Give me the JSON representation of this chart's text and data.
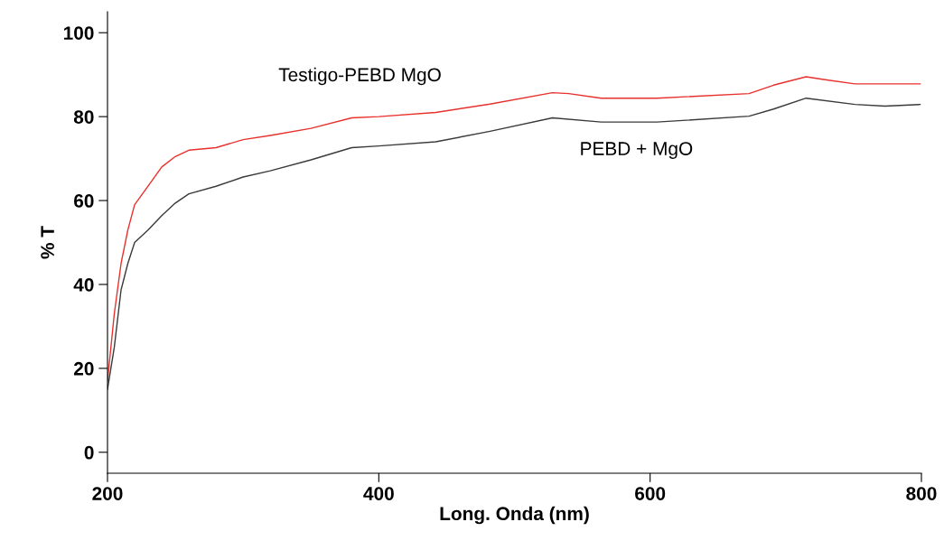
{
  "chart_data": {
    "type": "line",
    "xlabel": "Long. Onda (nm)",
    "ylabel": "% T",
    "xlim": [
      200,
      800
    ],
    "xticks": [
      200,
      400,
      600,
      800
    ],
    "ylim": [
      -5,
      105
    ],
    "yticks": [
      0,
      20,
      40,
      60,
      80,
      100
    ],
    "grid": false,
    "legend": false,
    "marker": "none",
    "line_style": "solid",
    "series": [
      {
        "name": "Testigo-PEBD MgO",
        "color": "#e8302c",
        "x": [
          200,
          205,
          210,
          215,
          220,
          230,
          240,
          250,
          260,
          280,
          300,
          320,
          350,
          380,
          400,
          442,
          482,
          528,
          540,
          564,
          605,
          673,
          691,
          715,
          729,
          751,
          799
        ],
        "values": [
          17,
          33,
          45,
          53,
          59,
          63.5,
          68,
          70.5,
          72,
          72.6,
          74.5,
          75.5,
          77.2,
          79.7,
          80,
          81,
          83,
          85.7,
          85.5,
          84.4,
          84.4,
          85.5,
          87.5,
          89.5,
          88.8,
          87.8,
          87.8
        ]
      },
      {
        "name": "PEBD + MgO",
        "color": "#3a3a3a",
        "x": [
          200,
          205,
          210,
          215,
          220,
          230,
          240,
          250,
          260,
          280,
          300,
          320,
          350,
          380,
          400,
          442,
          482,
          528,
          564,
          605,
          673,
          691,
          715,
          751,
          773,
          799
        ],
        "values": [
          15,
          25,
          38.7,
          45,
          50,
          53,
          56.4,
          59.4,
          61.6,
          63.4,
          65.6,
          67.1,
          69.7,
          72.6,
          73,
          74,
          76.5,
          79.7,
          78.7,
          78.7,
          80.1,
          81.8,
          84.4,
          82.9,
          82.5,
          82.9
        ]
      }
    ]
  }
}
